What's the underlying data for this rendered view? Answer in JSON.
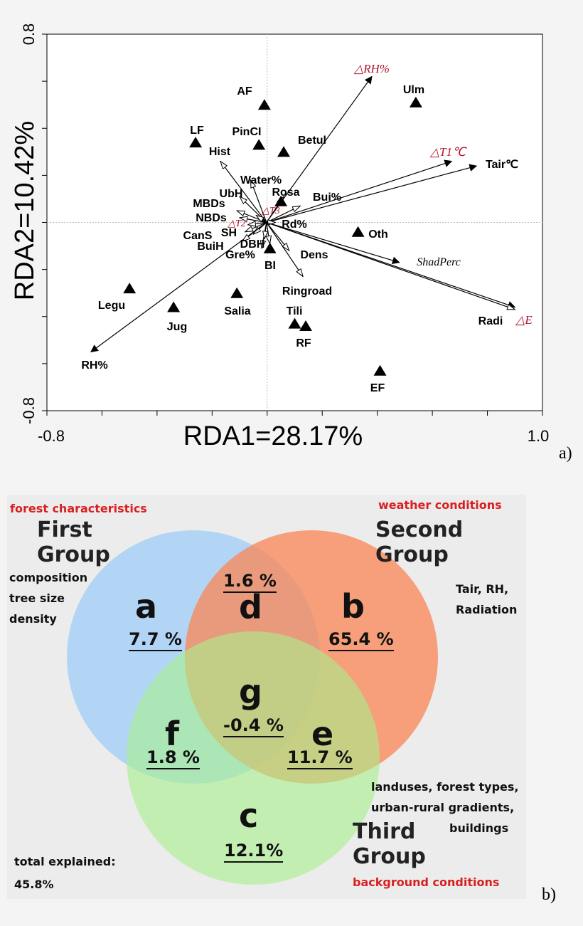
{
  "chart_data": [
    {
      "type": "scatter",
      "subtype": "rda-biplot",
      "panel_label": "a)",
      "xlabel": "RDA1=28.17%",
      "ylabel": "RDA2=10.42%",
      "xlim": [
        -0.8,
        1.0
      ],
      "ylim": [
        -0.8,
        0.8
      ],
      "x_ticks": [
        {
          "value": -0.8,
          "label": "-0.8"
        },
        {
          "value": 1.0,
          "label": "1.0"
        }
      ],
      "y_ticks": [
        {
          "value": 0.8,
          "label": "0.8"
        },
        {
          "value": -0.8,
          "label": "-0.8"
        }
      ],
      "x_minor_ticks": [
        -0.6,
        -0.4,
        -0.2,
        0.0,
        0.2,
        0.4,
        0.6,
        0.8
      ],
      "y_minor_ticks": [
        0.6,
        0.4,
        0.2,
        0.0,
        -0.2,
        -0.4,
        -0.6
      ],
      "arrows_solid": [
        {
          "label": "△RH%",
          "x": 0.38,
          "y": 0.62,
          "style": "italic-red"
        },
        {
          "label": "△T1℃",
          "x": 0.67,
          "y": 0.26,
          "style": "italic-red"
        },
        {
          "label": "Tair℃",
          "x": 0.76,
          "y": 0.24,
          "style": "normal"
        },
        {
          "label": "ShadPerc",
          "x": 0.48,
          "y": -0.17,
          "style": "italic"
        },
        {
          "label": "Radi",
          "x": 0.9,
          "y": -0.36,
          "style": "normal"
        },
        {
          "label": "RH%",
          "x": -0.64,
          "y": -0.55,
          "style": "normal"
        }
      ],
      "arrows_open": [
        {
          "label": "Hist",
          "x": -0.17,
          "y": 0.26
        },
        {
          "label": "Water%",
          "x": -0.06,
          "y": 0.18
        },
        {
          "label": "UbH",
          "x": -0.1,
          "y": 0.11
        },
        {
          "label": "Rosa",
          "x": 0.06,
          "y": 0.11
        },
        {
          "label": "Bui%",
          "x": 0.12,
          "y": 0.07
        },
        {
          "label": "MBDs",
          "x": -0.11,
          "y": 0.05
        },
        {
          "label": "△T3",
          "x": -0.04,
          "y": 0.03
        },
        {
          "label": "NBDs",
          "x": -0.1,
          "y": 0.02
        },
        {
          "label": "△T2",
          "x": -0.07,
          "y": -0.01
        },
        {
          "label": "Rd%",
          "x": 0.03,
          "y": 0.0
        },
        {
          "label": "CanS",
          "x": -0.08,
          "y": -0.04
        },
        {
          "label": "SH",
          "x": -0.05,
          "y": -0.05
        },
        {
          "label": "BuiH",
          "x": -0.09,
          "y": -0.08
        },
        {
          "label": "Gre%",
          "x": -0.02,
          "y": -0.11
        },
        {
          "label": "DBH",
          "x": -0.01,
          "y": -0.07
        },
        {
          "label": "Dens",
          "x": 0.08,
          "y": -0.12
        },
        {
          "label": "BI",
          "x": 0.01,
          "y": -0.09
        },
        {
          "label": "Ringroad",
          "x": 0.13,
          "y": -0.23
        },
        {
          "label": "△E",
          "x": 0.9,
          "y": -0.37,
          "style": "italic-red"
        }
      ],
      "sites": [
        {
          "label": "AF",
          "x": -0.01,
          "y": 0.5
        },
        {
          "label": "Ulm",
          "x": 0.54,
          "y": 0.51
        },
        {
          "label": "LF",
          "x": -0.26,
          "y": 0.34
        },
        {
          "label": "PinCI",
          "x": -0.03,
          "y": 0.33
        },
        {
          "label": "Betul",
          "x": 0.06,
          "y": 0.3
        },
        {
          "label": "Rosa",
          "x": 0.05,
          "y": 0.09
        },
        {
          "label": "Oth",
          "x": 0.33,
          "y": -0.04
        },
        {
          "label": "BI",
          "x": 0.01,
          "y": -0.11
        },
        {
          "label": "Legu",
          "x": -0.5,
          "y": -0.28
        },
        {
          "label": "Salia",
          "x": -0.11,
          "y": -0.3
        },
        {
          "label": "Jug",
          "x": -0.34,
          "y": -0.36
        },
        {
          "label": "Tili",
          "x": 0.1,
          "y": -0.43
        },
        {
          "label": "RF",
          "x": 0.14,
          "y": -0.44
        },
        {
          "label": "EF",
          "x": 0.41,
          "y": -0.63
        }
      ]
    },
    {
      "type": "venn",
      "panel_label": "b)",
      "total_label": "total explained:",
      "total_value": "45.8%",
      "groups": [
        {
          "name_line1": "First",
          "name_line2": "Group",
          "category": "forest characteristics",
          "desc": [
            "composition",
            "tree size",
            "density"
          ],
          "color": "#a8d1f7"
        },
        {
          "name_line1": "Second",
          "name_line2": "Group",
          "category": "weather conditions",
          "desc": [
            "Tair, RH,",
            "Radiation"
          ],
          "color": "#f9895a"
        },
        {
          "name_line1": "Third",
          "name_line2": "Group",
          "category": "background conditions",
          "desc": [
            "landuses, forest types,",
            "urban-rural gradients,",
            "buildings"
          ],
          "color": "#a9f08c"
        }
      ],
      "regions": [
        {
          "letter": "a",
          "value": 7.7,
          "label": "7.7 %"
        },
        {
          "letter": "b",
          "value": 65.4,
          "label": "65.4 %"
        },
        {
          "letter": "c",
          "value": 12.1,
          "label": "12.1%"
        },
        {
          "letter": "d",
          "value": 1.6,
          "label": "1.6 %"
        },
        {
          "letter": "e",
          "value": 11.7,
          "label": "11.7 %"
        },
        {
          "letter": "f",
          "value": 1.8,
          "label": "1.8 %"
        },
        {
          "letter": "g",
          "value": -0.4,
          "label": "-0.4 %"
        }
      ]
    }
  ]
}
